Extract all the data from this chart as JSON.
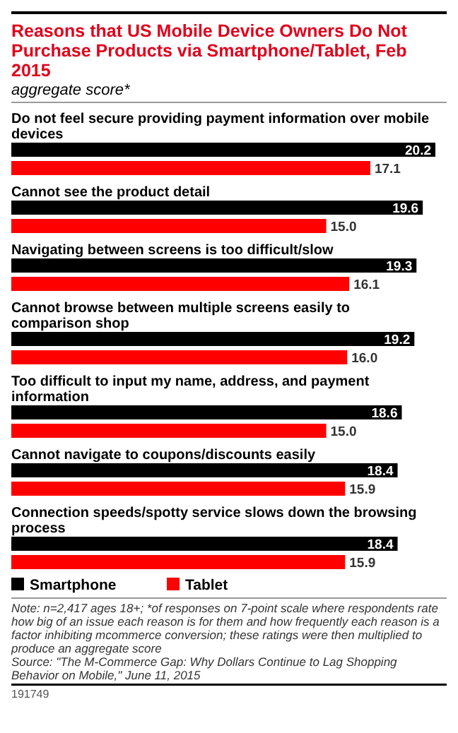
{
  "chart_data": {
    "type": "bar",
    "orientation": "horizontal",
    "title": "Reasons that US Mobile Device Owners Do Not Purchase Products via Smartphone/Tablet, Feb 2015",
    "subtitle": "aggregate score*",
    "categories": [
      "Do not feel secure providing payment information over mobile devices",
      "Cannot see the product detail",
      "Navigating between screens is too difficult/slow",
      "Cannot browse between multiple screens easily to comparison shop",
      "Too difficult to input my name, address, and payment information",
      "Cannot navigate to coupons/discounts easily",
      "Connection speeds/spotty service slows down the browsing process"
    ],
    "series": [
      {
        "name": "Smartphone",
        "color": "#000000",
        "values": [
          20.2,
          19.6,
          19.3,
          19.2,
          18.6,
          18.4,
          18.4
        ],
        "value_labels": [
          "20.2",
          "19.6",
          "19.3",
          "19.2",
          "18.6",
          "18.4",
          "18.4"
        ]
      },
      {
        "name": "Tablet",
        "color": "#ff0000",
        "values": [
          17.1,
          15.0,
          16.1,
          16.0,
          15.0,
          15.9,
          15.9
        ],
        "value_labels": [
          "17.1",
          "15.0",
          "16.1",
          "16.0",
          "15.0",
          "15.9",
          "15.9"
        ]
      }
    ],
    "legend": "bottom",
    "annotations": [
      "Note: n=2,417 ages 18+; *of responses on 7-point scale where respondents rate how big of an issue each reason is for them and how frequently each reason is a factor inhibiting mcommerce conversion; these ratings were then multiplied to produce an aggregate score",
      "Source: \"The M-Commerce Gap: Why Dollars Continue to Lag Shopping Behavior on Mobile,\" June 11, 2015",
      "191749"
    ]
  }
}
